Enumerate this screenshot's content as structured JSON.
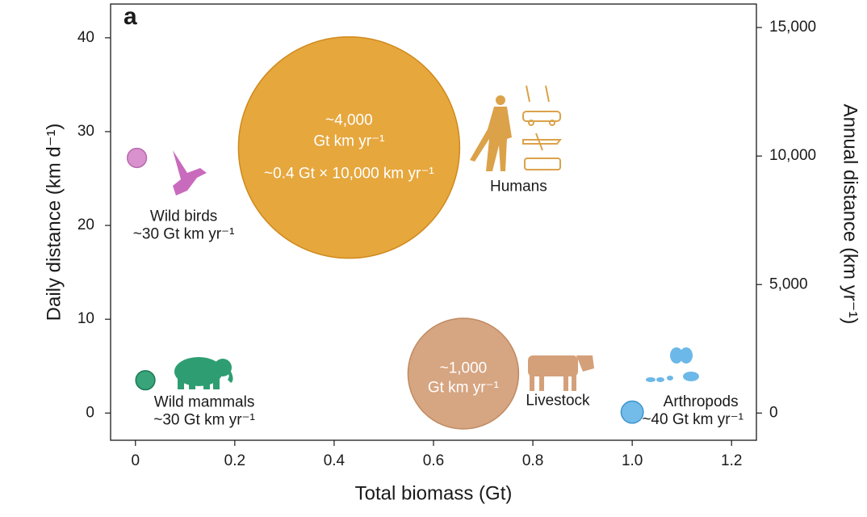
{
  "chart_data": {
    "type": "bubble",
    "panel_label": "a",
    "x_label": "Total biomass (Gt)",
    "y_label": "Daily distance (km d⁻¹)",
    "y2_label": "Annual distance (km yr⁻¹)",
    "xlim": [
      -0.05,
      1.25
    ],
    "xticks": [
      0,
      0.2,
      0.4,
      0.6,
      0.8,
      {
        "value": 1,
        "label": "1.0"
      },
      1.2
    ],
    "ylim": [
      -2.9,
      43.6
    ],
    "yticks": [
      0,
      10,
      20,
      30,
      40
    ],
    "y2lim": [
      -1058.5,
      15914
    ],
    "y2ticks": [
      0,
      {
        "value": 5000,
        "label": "5,000"
      },
      {
        "value": 10000,
        "label": "10,000"
      },
      {
        "value": 15000,
        "label": "15,000"
      }
    ],
    "series": [
      {
        "name": "Humans",
        "color": "#e5a233",
        "x": [
          0.43
        ],
        "values": [
          28.3
        ],
        "sizes": [
          4000
        ],
        "size_labels": [
          [
            "~4,000",
            "Gt km yr⁻¹"
          ]
        ],
        "note": "~0.4 Gt × 10,000 km yr⁻¹"
      },
      {
        "name": "Livestock",
        "color": "#d4a07a",
        "x": [
          0.66
        ],
        "values": [
          4.2
        ],
        "sizes": [
          1000
        ],
        "size_labels": [
          [
            "~1,000",
            "Gt km yr⁻¹"
          ]
        ]
      },
      {
        "name": "Wild birds",
        "color": "#d88ccc",
        "x": [
          0.003
        ],
        "values": [
          27.2
        ],
        "sizes": [
          30
        ],
        "size_labels": [
          [
            "~30 Gt km yr⁻¹"
          ]
        ]
      },
      {
        "name": "Wild mammals",
        "color": "#2e9e72",
        "x": [
          0.02
        ],
        "values": [
          3.5
        ],
        "sizes": [
          30
        ],
        "size_labels": [
          [
            "~30 Gt km yr⁻¹"
          ]
        ]
      },
      {
        "name": "Arthropods",
        "color": "#6cb8e8",
        "x": [
          1.0
        ],
        "values": [
          0.1
        ],
        "sizes": [
          40
        ],
        "size_labels": [
          [
            "~40 Gt km yr⁻¹"
          ]
        ]
      }
    ]
  }
}
